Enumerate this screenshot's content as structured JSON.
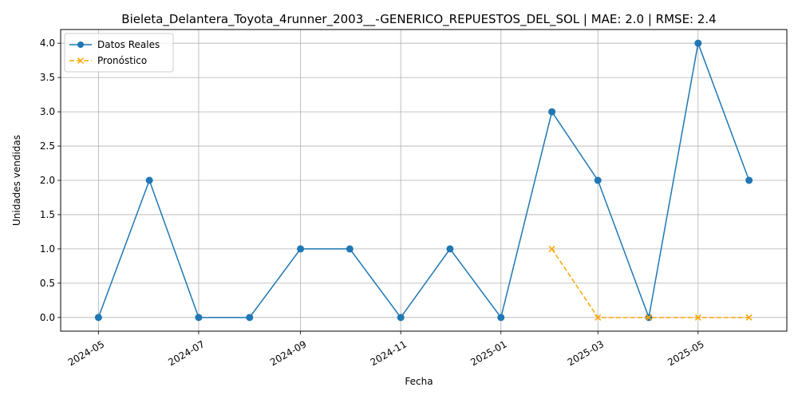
{
  "chart_data": {
    "type": "line",
    "title": "Bieleta_Delantera_Toyota_4runner_2003__-GENERICO_REPUESTOS_DEL_SOL | MAE: 2.0 | RMSE: 2.4",
    "xlabel": "Fecha",
    "ylabel": "Unidades vendidas",
    "ylim": [
      -0.2,
      4.2
    ],
    "xlim": [
      "2024-04-08",
      "2025-06-24"
    ],
    "grid": true,
    "legend_position": "upper left",
    "x_ticks": [
      "2024-05",
      "2024-07",
      "2024-09",
      "2024-11",
      "2025-01",
      "2025-03",
      "2025-05"
    ],
    "x_tick_dates": [
      "2024-05-01",
      "2024-07-01",
      "2024-09-01",
      "2024-11-01",
      "2025-01-01",
      "2025-03-01",
      "2025-05-01"
    ],
    "y_ticks": [
      "0.0",
      "0.5",
      "1.0",
      "1.5",
      "2.0",
      "2.5",
      "3.0",
      "3.5",
      "4.0"
    ],
    "series": [
      {
        "name": "Datos Reales",
        "color": "#1f77b4",
        "marker": "circle",
        "linestyle": "solid",
        "x": [
          "2024-05-01",
          "2024-06-01",
          "2024-07-01",
          "2024-08-01",
          "2024-09-01",
          "2024-10-01",
          "2024-11-01",
          "2024-12-01",
          "2025-01-01",
          "2025-02-01",
          "2025-03-01",
          "2025-04-01",
          "2025-05-01",
          "2025-06-01"
        ],
        "y": [
          0,
          2,
          0,
          0,
          1,
          1,
          0,
          1,
          0,
          3,
          2,
          0,
          4,
          2
        ]
      },
      {
        "name": "Pronóstico",
        "color": "#ffa500",
        "marker": "x",
        "linestyle": "dashed",
        "x": [
          "2025-02-01",
          "2025-03-01",
          "2025-04-01",
          "2025-05-01",
          "2025-06-01"
        ],
        "y": [
          1,
          0,
          0,
          0,
          0
        ]
      }
    ]
  }
}
